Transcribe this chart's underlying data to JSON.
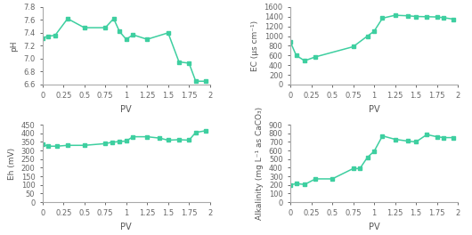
{
  "ph": {
    "pv": [
      0,
      0.07,
      0.15,
      0.3,
      0.5,
      0.75,
      0.85,
      0.92,
      1.0,
      1.08,
      1.25,
      1.5,
      1.63,
      1.75,
      1.83,
      1.95
    ],
    "values": [
      7.32,
      7.35,
      7.36,
      7.62,
      7.48,
      7.48,
      7.62,
      7.42,
      7.3,
      7.37,
      7.3,
      7.4,
      6.95,
      6.93,
      6.65,
      6.65
    ],
    "ylabel": "pH",
    "ylim": [
      6.6,
      7.8
    ],
    "yticks": [
      6.6,
      6.8,
      7.0,
      7.2,
      7.4,
      7.6,
      7.8
    ]
  },
  "ec": {
    "pv": [
      0,
      0.07,
      0.17,
      0.3,
      0.75,
      0.92,
      1.0,
      1.1,
      1.25,
      1.4,
      1.5,
      1.63,
      1.75,
      1.83,
      1.95
    ],
    "values": [
      880,
      600,
      490,
      570,
      780,
      1000,
      1100,
      1370,
      1430,
      1420,
      1405,
      1400,
      1395,
      1380,
      1350
    ],
    "ylabel": "EC (μs cm⁻¹)",
    "ylim": [
      0,
      1600
    ],
    "yticks": [
      0,
      200,
      400,
      600,
      800,
      1000,
      1200,
      1400,
      1600
    ]
  },
  "eh": {
    "pv": [
      0,
      0.07,
      0.17,
      0.3,
      0.5,
      0.75,
      0.83,
      0.92,
      1.0,
      1.08,
      1.25,
      1.4,
      1.5,
      1.63,
      1.75,
      1.83,
      1.95
    ],
    "values": [
      335,
      325,
      325,
      330,
      330,
      340,
      348,
      352,
      355,
      380,
      380,
      372,
      360,
      363,
      360,
      405,
      415
    ],
    "ylabel": "Eh (mV)",
    "ylim": [
      0,
      450
    ],
    "yticks": [
      0,
      50,
      100,
      150,
      200,
      250,
      300,
      350,
      400,
      450
    ]
  },
  "alk": {
    "pv": [
      0,
      0.07,
      0.17,
      0.3,
      0.5,
      0.75,
      0.83,
      0.92,
      1.0,
      1.1,
      1.25,
      1.4,
      1.5,
      1.63,
      1.75,
      1.83,
      1.95
    ],
    "values": [
      200,
      215,
      205,
      270,
      270,
      390,
      390,
      520,
      590,
      770,
      730,
      710,
      700,
      785,
      760,
      750,
      750
    ],
    "ylabel": "Alkalinity (mg L⁻¹ as CaCO₃)",
    "ylim": [
      0,
      900
    ],
    "yticks": [
      0,
      100,
      200,
      300,
      400,
      500,
      600,
      700,
      800,
      900
    ]
  },
  "line_color": "#3ecfa0",
  "marker": "s",
  "markersize": 3.5,
  "linewidth": 1.1,
  "xlabel": "PV",
  "xticks": [
    0,
    0.25,
    0.5,
    0.75,
    1,
    1.25,
    1.5,
    1.75,
    2
  ],
  "xlim": [
    0,
    2
  ],
  "tick_fontsize": 6,
  "label_fontsize": 7,
  "ylabel_fontsize": 6.5
}
